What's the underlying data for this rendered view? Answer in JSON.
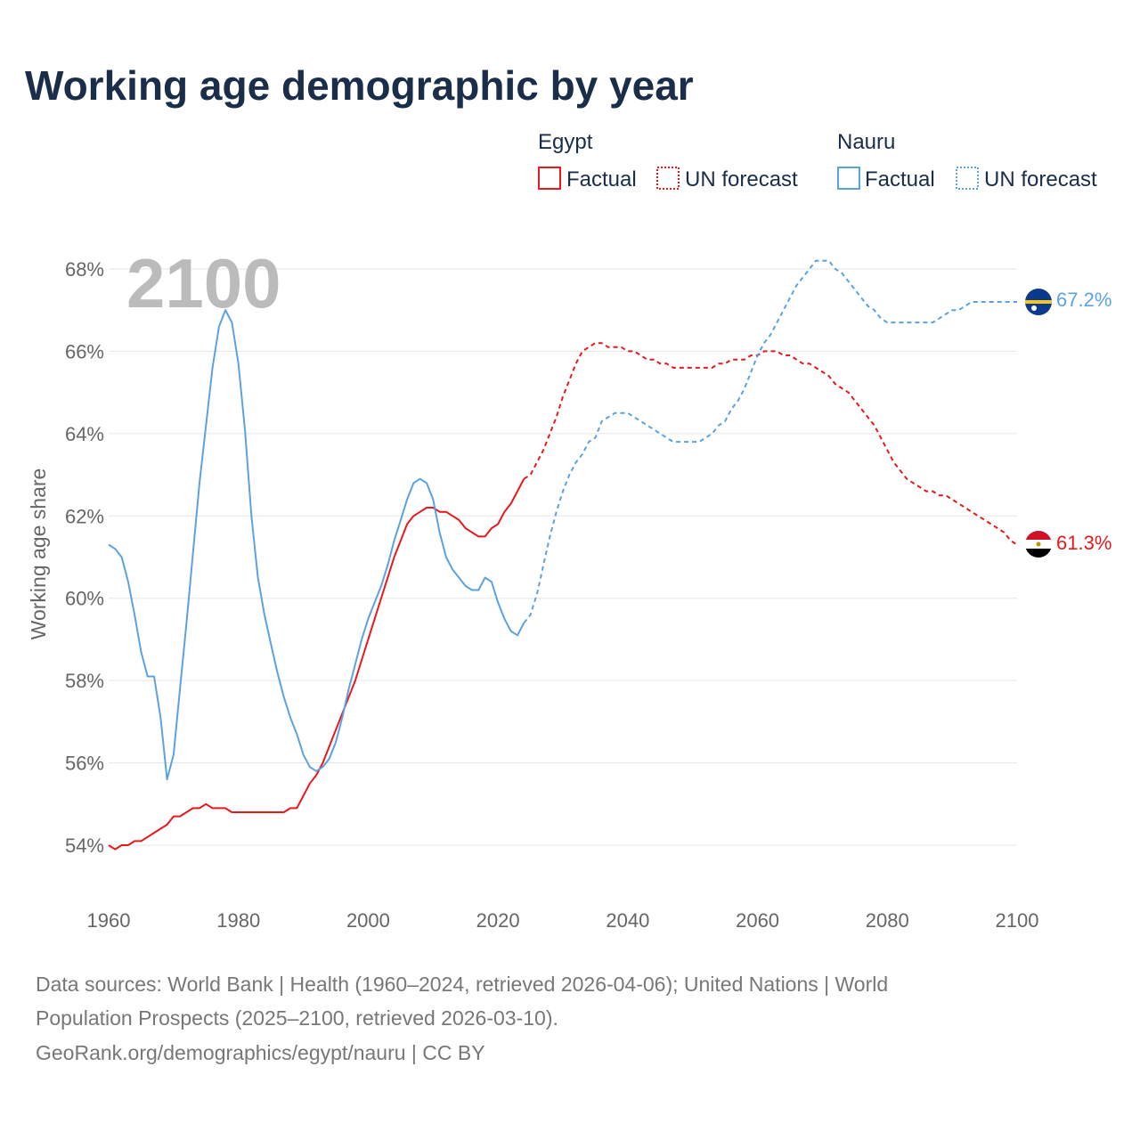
{
  "title": "Working age demographic by year",
  "year_display": "2100",
  "legend": {
    "groups": [
      {
        "country": "Egypt",
        "color": "#e8191c",
        "factual_label": "Factual",
        "forecast_label": "UN forecast"
      },
      {
        "country": "Nauru",
        "color": "#5ba3e0",
        "factual_label": "Factual",
        "forecast_label": "UN forecast"
      }
    ]
  },
  "end_labels": {
    "egypt": "61.3%",
    "nauru": "67.2%"
  },
  "source": {
    "line1": "Data sources: World Bank | Health (1960–2024, retrieved 2026-04-06); United Nations | World",
    "line2": "Population Prospects (2025–2100, retrieved 2026-03-10).",
    "line3": "GeoRank.org/demographics/egypt/nauru | CC BY"
  },
  "chart_data": {
    "type": "line",
    "title": "Working age demographic by year",
    "xlabel": "",
    "ylabel": "Working age share",
    "xlim": [
      1960,
      2100
    ],
    "ylim": [
      53,
      69
    ],
    "x_ticks": [
      1960,
      1980,
      2000,
      2020,
      2040,
      2060,
      2080,
      2100
    ],
    "y_ticks": [
      54,
      56,
      58,
      60,
      62,
      64,
      66,
      68
    ],
    "y_tick_labels": [
      "54%",
      "56%",
      "58%",
      "60%",
      "62%",
      "64%",
      "66%",
      "68%"
    ],
    "x_tick_labels": [
      "1960",
      "1980",
      "2000",
      "2020",
      "2040",
      "2060",
      "2080",
      "2100"
    ],
    "series": [
      {
        "name": "Egypt Factual",
        "color": "#e8191c",
        "style": "solid",
        "x": [
          1960,
          1961,
          1962,
          1963,
          1964,
          1965,
          1966,
          1967,
          1968,
          1969,
          1970,
          1971,
          1972,
          1973,
          1974,
          1975,
          1976,
          1977,
          1978,
          1979,
          1980,
          1981,
          1982,
          1983,
          1984,
          1985,
          1986,
          1987,
          1988,
          1989,
          1990,
          1991,
          1992,
          1993,
          1994,
          1995,
          1996,
          1997,
          1998,
          1999,
          2000,
          2001,
          2002,
          2003,
          2004,
          2005,
          2006,
          2007,
          2008,
          2009,
          2010,
          2011,
          2012,
          2013,
          2014,
          2015,
          2016,
          2017,
          2018,
          2019,
          2020,
          2021,
          2022,
          2023,
          2024
        ],
        "values": [
          54.0,
          53.9,
          54.0,
          54.0,
          54.1,
          54.1,
          54.2,
          54.3,
          54.4,
          54.5,
          54.7,
          54.7,
          54.8,
          54.9,
          54.9,
          55.0,
          54.9,
          54.9,
          54.9,
          54.8,
          54.8,
          54.8,
          54.8,
          54.8,
          54.8,
          54.8,
          54.8,
          54.8,
          54.9,
          54.9,
          55.2,
          55.5,
          55.7,
          56.0,
          56.4,
          56.8,
          57.2,
          57.6,
          58.0,
          58.5,
          59.0,
          59.5,
          60.0,
          60.5,
          61.0,
          61.4,
          61.8,
          62.0,
          62.1,
          62.2,
          62.2,
          62.1,
          62.1,
          62.0,
          61.9,
          61.7,
          61.6,
          61.5,
          61.5,
          61.7,
          61.8,
          62.1,
          62.3,
          62.6,
          62.9
        ]
      },
      {
        "name": "Egypt UN forecast",
        "color": "#e8191c",
        "style": "dashed",
        "x": [
          2024,
          2025,
          2026,
          2027,
          2028,
          2029,
          2030,
          2031,
          2032,
          2033,
          2034,
          2035,
          2036,
          2037,
          2038,
          2039,
          2040,
          2041,
          2042,
          2043,
          2044,
          2045,
          2046,
          2047,
          2048,
          2049,
          2050,
          2051,
          2052,
          2053,
          2054,
          2055,
          2056,
          2057,
          2058,
          2059,
          2060,
          2061,
          2062,
          2063,
          2064,
          2065,
          2066,
          2067,
          2068,
          2069,
          2070,
          2071,
          2072,
          2073,
          2074,
          2075,
          2076,
          2077,
          2078,
          2079,
          2080,
          2081,
          2082,
          2083,
          2084,
          2085,
          2086,
          2087,
          2088,
          2089,
          2090,
          2091,
          2092,
          2093,
          2094,
          2095,
          2096,
          2097,
          2098,
          2099,
          2100
        ],
        "values": [
          62.9,
          63.0,
          63.3,
          63.6,
          64.0,
          64.4,
          64.9,
          65.3,
          65.7,
          66.0,
          66.1,
          66.2,
          66.2,
          66.1,
          66.1,
          66.1,
          66.0,
          66.0,
          65.9,
          65.8,
          65.8,
          65.7,
          65.7,
          65.6,
          65.6,
          65.6,
          65.6,
          65.6,
          65.6,
          65.6,
          65.7,
          65.7,
          65.8,
          65.8,
          65.8,
          65.9,
          65.9,
          66.0,
          66.0,
          66.0,
          65.9,
          65.9,
          65.8,
          65.7,
          65.7,
          65.6,
          65.5,
          65.4,
          65.2,
          65.1,
          65.0,
          64.8,
          64.6,
          64.4,
          64.2,
          63.9,
          63.6,
          63.3,
          63.1,
          62.9,
          62.8,
          62.7,
          62.6,
          62.6,
          62.5,
          62.5,
          62.4,
          62.3,
          62.2,
          62.1,
          62.0,
          61.9,
          61.8,
          61.7,
          61.6,
          61.4,
          61.3
        ]
      },
      {
        "name": "Nauru Factual",
        "color": "#5ba3e0",
        "style": "solid",
        "x": [
          1960,
          1961,
          1962,
          1963,
          1964,
          1965,
          1966,
          1967,
          1968,
          1969,
          1970,
          1971,
          1972,
          1973,
          1974,
          1975,
          1976,
          1977,
          1978,
          1979,
          1980,
          1981,
          1982,
          1983,
          1984,
          1985,
          1986,
          1987,
          1988,
          1989,
          1990,
          1991,
          1992,
          1993,
          1994,
          1995,
          1996,
          1997,
          1998,
          1999,
          2000,
          2001,
          2002,
          2003,
          2004,
          2005,
          2006,
          2007,
          2008,
          2009,
          2010,
          2011,
          2012,
          2013,
          2014,
          2015,
          2016,
          2017,
          2018,
          2019,
          2020,
          2021,
          2022,
          2023,
          2024
        ],
        "values": [
          61.3,
          61.2,
          61.0,
          60.4,
          59.6,
          58.7,
          58.1,
          58.1,
          57.1,
          55.6,
          56.2,
          57.8,
          59.4,
          61.1,
          62.8,
          64.2,
          65.6,
          66.6,
          67.0,
          66.7,
          65.7,
          64.1,
          62.0,
          60.5,
          59.6,
          58.9,
          58.2,
          57.6,
          57.1,
          56.7,
          56.2,
          55.9,
          55.8,
          55.9,
          56.1,
          56.5,
          57.1,
          57.8,
          58.4,
          59.0,
          59.5,
          59.9,
          60.3,
          60.8,
          61.4,
          61.9,
          62.4,
          62.8,
          62.9,
          62.8,
          62.4,
          61.6,
          61.0,
          60.7,
          60.5,
          60.3,
          60.2,
          60.2,
          60.5,
          60.4,
          59.9,
          59.5,
          59.2,
          59.1,
          59.4
        ]
      },
      {
        "name": "Nauru UN forecast",
        "color": "#5ba3e0",
        "style": "dashed",
        "x": [
          2024,
          2025,
          2026,
          2027,
          2028,
          2029,
          2030,
          2031,
          2032,
          2033,
          2034,
          2035,
          2036,
          2037,
          2038,
          2039,
          2040,
          2041,
          2042,
          2043,
          2044,
          2045,
          2046,
          2047,
          2048,
          2049,
          2050,
          2051,
          2052,
          2053,
          2054,
          2055,
          2056,
          2057,
          2058,
          2059,
          2060,
          2061,
          2062,
          2063,
          2064,
          2065,
          2066,
          2067,
          2068,
          2069,
          2070,
          2071,
          2072,
          2073,
          2074,
          2075,
          2076,
          2077,
          2078,
          2079,
          2080,
          2081,
          2082,
          2083,
          2084,
          2085,
          2086,
          2087,
          2088,
          2089,
          2090,
          2091,
          2092,
          2093,
          2094,
          2095,
          2096,
          2097,
          2098,
          2099,
          2100
        ],
        "values": [
          59.4,
          59.6,
          60.1,
          60.8,
          61.5,
          62.1,
          62.6,
          63.0,
          63.3,
          63.5,
          63.8,
          63.9,
          64.3,
          64.4,
          64.5,
          64.5,
          64.5,
          64.4,
          64.3,
          64.2,
          64.1,
          64.0,
          63.9,
          63.8,
          63.8,
          63.8,
          63.8,
          63.8,
          63.9,
          64.0,
          64.2,
          64.3,
          64.6,
          64.8,
          65.1,
          65.5,
          65.9,
          66.2,
          66.4,
          66.7,
          67.0,
          67.3,
          67.6,
          67.8,
          68.0,
          68.2,
          68.2,
          68.2,
          68.0,
          67.9,
          67.7,
          67.5,
          67.3,
          67.1,
          67.0,
          66.8,
          66.7,
          66.7,
          66.7,
          66.7,
          66.7,
          66.7,
          66.7,
          66.7,
          66.8,
          66.9,
          67.0,
          67.0,
          67.1,
          67.2,
          67.2,
          67.2,
          67.2,
          67.2,
          67.2,
          67.2,
          67.2
        ]
      }
    ]
  }
}
